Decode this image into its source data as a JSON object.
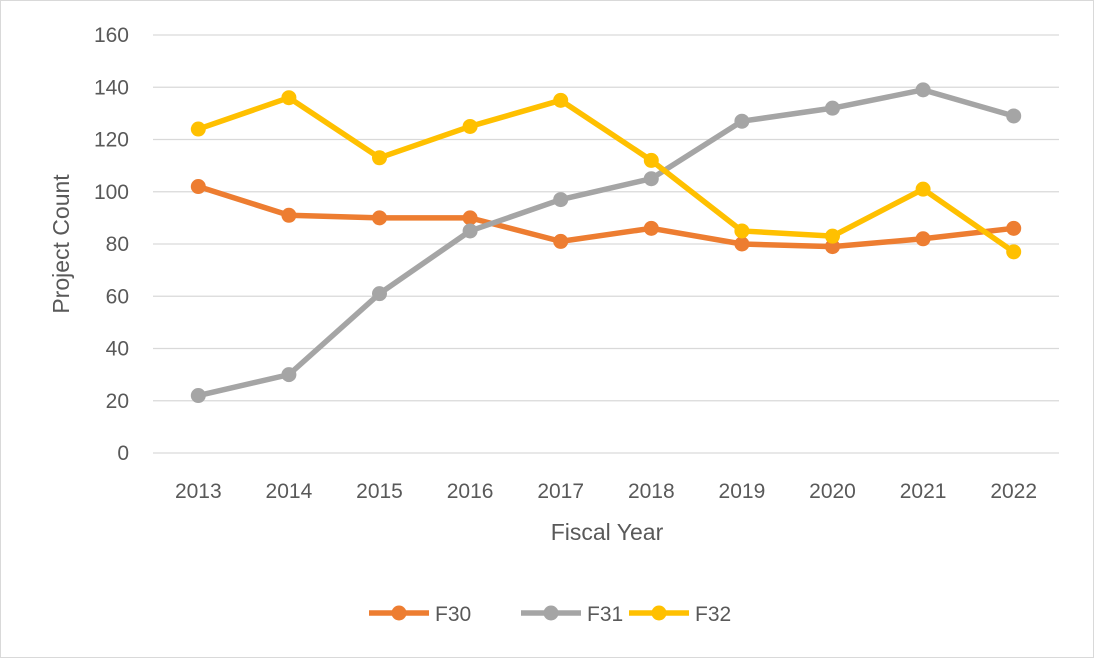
{
  "chart_data": {
    "type": "line",
    "title": "",
    "xlabel": "Fiscal Year",
    "ylabel": "Project Count",
    "categories": [
      "2013",
      "2014",
      "2015",
      "2016",
      "2017",
      "2018",
      "2019",
      "2020",
      "2021",
      "2022"
    ],
    "ylim": [
      0,
      160
    ],
    "yticks": [
      "0",
      "20",
      "40",
      "60",
      "80",
      "100",
      "120",
      "140",
      "160"
    ],
    "grid": true,
    "legend": "bottom",
    "series": [
      {
        "name": "F30",
        "color": "#ed7d31",
        "values": [
          102,
          91,
          90,
          90,
          81,
          86,
          80,
          79,
          82,
          86
        ]
      },
      {
        "name": "F31",
        "color": "#a5a5a5",
        "values": [
          22,
          30,
          61,
          85,
          97,
          105,
          127,
          132,
          139,
          129
        ]
      },
      {
        "name": "F32",
        "color": "#ffc000",
        "values": [
          124,
          136,
          113,
          125,
          135,
          112,
          85,
          83,
          101,
          77
        ]
      }
    ]
  }
}
